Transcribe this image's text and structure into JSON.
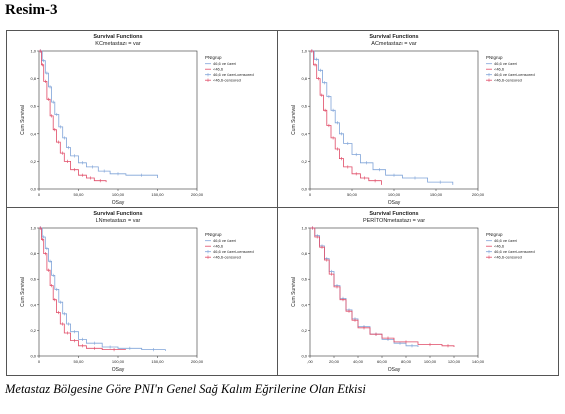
{
  "heading": "Resim-3",
  "caption": "Metastaz Bölgesine Göre PNI'n Genel Sağ Kalım Eğrilerine Olan Etkisi",
  "colors": {
    "group_a": "#7fa3d8",
    "group_b": "#e04a66",
    "axis": "#333333",
    "frame": "#555555"
  },
  "chart_data": [
    {
      "type": "line",
      "title": "Survival Functions",
      "subtitle": "KCmetastazı = var",
      "xlabel": "OSay",
      "ylabel": "Cum Survival",
      "xticks": [
        "0",
        "50,00",
        "100,00",
        "150,00",
        "200,00"
      ],
      "yticks": [
        "0,0",
        "0,2",
        "0,4",
        "0,6",
        "0,8",
        "1,0"
      ],
      "xlim": [
        0,
        200
      ],
      "ylim": [
        0,
        1
      ],
      "legend_title": "PNIgrup",
      "legend": [
        "46,6 ve üzeri",
        "<46,6",
        "46,6 ve üzeri-censored",
        "<46,6-censored"
      ],
      "legend_position": "top-right",
      "series": [
        {
          "name": "46,6 ve üzeri",
          "color": "#7fa3d8",
          "x": [
            0,
            4,
            8,
            12,
            16,
            20,
            25,
            30,
            35,
            40,
            50,
            60,
            75,
            90,
            110,
            150
          ],
          "y": [
            1.0,
            0.93,
            0.84,
            0.74,
            0.63,
            0.54,
            0.45,
            0.37,
            0.3,
            0.24,
            0.19,
            0.16,
            0.13,
            0.11,
            0.1,
            0.08
          ]
        },
        {
          "name": "<46,6",
          "color": "#e04a66",
          "x": [
            0,
            3,
            6,
            10,
            14,
            18,
            22,
            27,
            32,
            40,
            50,
            60,
            70,
            85
          ],
          "y": [
            1.0,
            0.9,
            0.78,
            0.65,
            0.53,
            0.43,
            0.34,
            0.26,
            0.2,
            0.14,
            0.1,
            0.08,
            0.06,
            0.05
          ]
        }
      ]
    },
    {
      "type": "line",
      "title": "Survival Functions",
      "subtitle": "ACmetastazı = var",
      "xlabel": "OSay",
      "ylabel": "Cum Survival",
      "xticks": [
        "0",
        "50,00",
        "100,00",
        "150,00",
        "200,00"
      ],
      "yticks": [
        "0,0",
        "0,2",
        "0,4",
        "0,6",
        "0,8",
        "1,0"
      ],
      "xlim": [
        0,
        200
      ],
      "ylim": [
        0,
        1
      ],
      "legend_title": "PNIgrup",
      "legend": [
        "46,6 ve üzeri",
        "<46,6",
        "46,6 ve üzeri-censored",
        "<46,6-censored"
      ],
      "legend_position": "top-right",
      "series": [
        {
          "name": "46,6 ve üzeri",
          "color": "#7fa3d8",
          "x": [
            0,
            5,
            10,
            15,
            20,
            25,
            30,
            35,
            40,
            50,
            60,
            75,
            90,
            110,
            140,
            170
          ],
          "y": [
            1.0,
            0.94,
            0.86,
            0.77,
            0.67,
            0.57,
            0.48,
            0.4,
            0.33,
            0.25,
            0.19,
            0.14,
            0.1,
            0.08,
            0.05,
            0.03
          ]
        },
        {
          "name": "<46,6",
          "color": "#e04a66",
          "x": [
            0,
            4,
            8,
            12,
            16,
            20,
            25,
            30,
            35,
            40,
            50,
            60,
            70,
            85
          ],
          "y": [
            1.0,
            0.9,
            0.8,
            0.68,
            0.57,
            0.46,
            0.37,
            0.29,
            0.22,
            0.16,
            0.11,
            0.08,
            0.06,
            0.03
          ]
        }
      ]
    },
    {
      "type": "line",
      "title": "Survival Functions",
      "subtitle": "LNmetastazı = var",
      "xlabel": "OSay",
      "ylabel": "Cum Survival",
      "xticks": [
        "0",
        "50,00",
        "100,00",
        "150,00",
        "200,00"
      ],
      "yticks": [
        "0,0",
        "0,2",
        "0,4",
        "0,6",
        "0,8",
        "1,0"
      ],
      "xlim": [
        0,
        200
      ],
      "ylim": [
        0,
        1
      ],
      "legend_title": "PNIgrup",
      "legend": [
        "46,6 ve üzeri",
        "<46,6",
        "46,6 ve üzeri-censored",
        "<46,6-censored"
      ],
      "legend_position": "top-right",
      "series": [
        {
          "name": "46,6 ve üzeri",
          "color": "#7fa3d8",
          "x": [
            0,
            4,
            8,
            12,
            16,
            20,
            25,
            30,
            35,
            40,
            50,
            60,
            80,
            100,
            130,
            160
          ],
          "y": [
            1.0,
            0.93,
            0.84,
            0.74,
            0.63,
            0.52,
            0.42,
            0.33,
            0.25,
            0.19,
            0.13,
            0.1,
            0.07,
            0.06,
            0.05,
            0.04
          ]
        },
        {
          "name": "<46,6",
          "color": "#e04a66",
          "x": [
            0,
            3,
            6,
            10,
            14,
            18,
            22,
            27,
            32,
            40,
            50,
            60,
            80,
            110
          ],
          "y": [
            1.0,
            0.91,
            0.8,
            0.67,
            0.55,
            0.44,
            0.34,
            0.25,
            0.18,
            0.12,
            0.08,
            0.06,
            0.05,
            0.05
          ]
        }
      ]
    },
    {
      "type": "line",
      "title": "Survival Functions",
      "subtitle": "PERİTONmetastazı = var",
      "xlabel": "OSay",
      "ylabel": "Cum Survival",
      "xticks": [
        ",00",
        "20,00",
        "40,00",
        "60,00",
        "80,00",
        "100,00",
        "120,00",
        "140,00"
      ],
      "yticks": [
        "0,0",
        "0,2",
        "0,4",
        "0,6",
        "0,8",
        "1,0"
      ],
      "xlim": [
        0,
        140
      ],
      "ylim": [
        0,
        1
      ],
      "legend_title": "PNIgrup",
      "legend": [
        "46,6 ve üzeri",
        "<46,6",
        "46,6 ve üzeri-censored",
        "<46,6-censored"
      ],
      "legend_position": "top-right",
      "series": [
        {
          "name": "46,6 ve üzeri",
          "color": "#7fa3d8",
          "x": [
            0,
            4,
            8,
            12,
            16,
            20,
            25,
            30,
            35,
            40,
            50,
            60,
            70,
            80,
            90
          ],
          "y": [
            1.0,
            0.94,
            0.86,
            0.76,
            0.66,
            0.55,
            0.45,
            0.36,
            0.29,
            0.23,
            0.17,
            0.13,
            0.1,
            0.08,
            0.07
          ]
        },
        {
          "name": "<46,6",
          "color": "#e04a66",
          "x": [
            0,
            4,
            8,
            12,
            16,
            20,
            25,
            30,
            35,
            40,
            50,
            60,
            70,
            90,
            110,
            120
          ],
          "y": [
            1.0,
            0.93,
            0.85,
            0.75,
            0.64,
            0.54,
            0.44,
            0.35,
            0.28,
            0.22,
            0.17,
            0.14,
            0.11,
            0.09,
            0.08,
            0.07
          ]
        }
      ]
    }
  ]
}
